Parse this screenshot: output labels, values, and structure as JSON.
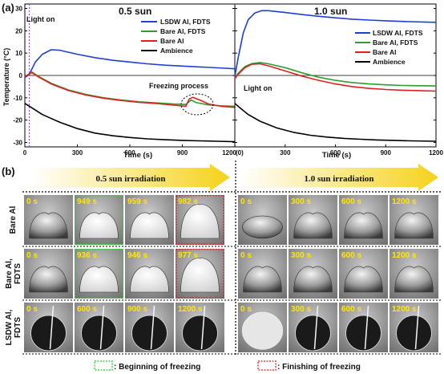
{
  "panel_a": {
    "label": "(a)",
    "ylabel": "Temperature (°C)",
    "xlabel": "Time (s)",
    "annotation_light": "Light on",
    "annotation_freezing": "Freezing process",
    "y_ticks": [
      "30",
      "20",
      "10",
      "0",
      "-10",
      "-20",
      "-30"
    ],
    "x_ticks_left": [
      "0",
      "300",
      "600",
      "900",
      "1200"
    ],
    "x_ticks_right": [
      "(0)",
      "300",
      "600",
      "900",
      "1200"
    ]
  },
  "chart_data": [
    {
      "type": "line",
      "title": "0.5 sun",
      "xlabel": "Time (s)",
      "ylabel": "Temperature (°C)",
      "xlim": [
        0,
        1200
      ],
      "ylim": [
        -32,
        32
      ],
      "legend": "top-right",
      "series": [
        {
          "name": "LSDW Al, FDTS",
          "color": "#1f3fd6",
          "x": [
            0,
            25,
            60,
            100,
            150,
            200,
            300,
            400,
            500,
            600,
            700,
            800,
            900,
            1000,
            1100,
            1200
          ],
          "y": [
            -1,
            0.5,
            6,
            9.5,
            11.5,
            11.3,
            9.5,
            8,
            6.8,
            6,
            5.2,
            4.6,
            4.2,
            3.8,
            3.4,
            3
          ]
        },
        {
          "name": "Bare Al, FDTS",
          "color": "#2f9e2f",
          "x": [
            0,
            40,
            80,
            150,
            250,
            350,
            450,
            550,
            650,
            750,
            850,
            920,
            950,
            980,
            1050,
            1120,
            1200
          ],
          "y": [
            -0.5,
            1.5,
            -0.5,
            -3.5,
            -6.5,
            -8.5,
            -10,
            -11,
            -11.8,
            -12.3,
            -12.8,
            -13,
            -11,
            -12.2,
            -13.2,
            -13.6,
            -13.8
          ]
        },
        {
          "name": "Bare Al",
          "color": "#e02020",
          "x": [
            0,
            40,
            80,
            150,
            250,
            350,
            450,
            550,
            650,
            750,
            850,
            920,
            940,
            960,
            1000,
            1050,
            1120,
            1200
          ],
          "y": [
            -0.5,
            1.3,
            -0.8,
            -3.8,
            -6.8,
            -8.8,
            -10.2,
            -11.2,
            -12,
            -12.6,
            -13.3,
            -13.8,
            -10.5,
            -9.8,
            -11,
            -12.8,
            -13.8,
            -14.3
          ]
        },
        {
          "name": "Ambience",
          "color": "#000000",
          "x": [
            0,
            50,
            100,
            200,
            300,
            400,
            500,
            600,
            700,
            800,
            900,
            1000,
            1100,
            1200
          ],
          "y": [
            -12.5,
            -15,
            -17.5,
            -21,
            -23.8,
            -25.8,
            -27,
            -27.8,
            -28.4,
            -28.8,
            -29.1,
            -29.3,
            -29.5,
            -29.7
          ]
        }
      ]
    },
    {
      "type": "line",
      "title": "1.0 sun",
      "xlabel": "Time (s)",
      "ylabel": "Temperature (°C)",
      "xlim": [
        0,
        1200
      ],
      "ylim": [
        -32,
        32
      ],
      "legend": "top-right",
      "series": [
        {
          "name": "LSDW Al, FDTS",
          "color": "#1f3fd6",
          "x": [
            0,
            20,
            50,
            80,
            120,
            160,
            200,
            300,
            400,
            500,
            600,
            700,
            800,
            900,
            1000,
            1100,
            1200
          ],
          "y": [
            -0.5,
            8,
            19,
            25,
            28,
            29,
            29,
            28.2,
            27.3,
            26.5,
            25.8,
            25.2,
            24.8,
            24.5,
            24.2,
            24,
            23.8
          ]
        },
        {
          "name": "Bare Al, FDTS",
          "color": "#2f9e2f",
          "x": [
            0,
            20,
            60,
            100,
            150,
            200,
            300,
            400,
            500,
            600,
            700,
            800,
            900,
            1000,
            1100,
            1200
          ],
          "y": [
            -1,
            1,
            4,
            5.3,
            5.8,
            5.2,
            3.5,
            1.2,
            -0.8,
            -2.2,
            -3.2,
            -3.8,
            -4.2,
            -4.5,
            -4.6,
            -4.7
          ]
        },
        {
          "name": "Bare Al",
          "color": "#e02020",
          "x": [
            0,
            20,
            60,
            100,
            150,
            200,
            300,
            400,
            500,
            600,
            700,
            800,
            900,
            1000,
            1100,
            1200
          ],
          "y": [
            -1.5,
            0.5,
            3.5,
            5,
            5.2,
            4.3,
            2,
            -0.3,
            -2.2,
            -3.8,
            -5,
            -5.8,
            -6.3,
            -6.6,
            -6.8,
            -7
          ]
        },
        {
          "name": "Ambience",
          "color": "#000000",
          "x": [
            0,
            30,
            80,
            150,
            250,
            350,
            450,
            550,
            650,
            750,
            850,
            950,
            1050,
            1200
          ],
          "y": [
            -12.5,
            -14.5,
            -17.5,
            -20.5,
            -23.5,
            -25.5,
            -26.8,
            -27.6,
            -28.2,
            -28.6,
            -28.9,
            -29.1,
            -29.3,
            -29.5
          ]
        }
      ]
    }
  ],
  "panel_b": {
    "label": "(b)",
    "banner_left": "0.5 sun irradiation",
    "banner_right": "1.0 sun irradiation",
    "rows": [
      {
        "label_line1": "Bare Al",
        "label_line2": "",
        "left": [
          "0 s",
          "949 s",
          "959 s",
          "982 s"
        ],
        "right": [
          "0 s",
          "300 s",
          "600 s",
          "1200 s"
        ]
      },
      {
        "label_line1": "Bare Al,",
        "label_line2": "FDTS",
        "left": [
          "0 s",
          "936 s",
          "946 s",
          "977 s"
        ],
        "right": [
          "0 s",
          "300 s",
          "600 s",
          "1200 s"
        ]
      },
      {
        "label_line1": "LSDW Al,",
        "label_line2": "FDTS",
        "left": [
          "0 s",
          "600 s",
          "900 s",
          "1200 s"
        ],
        "right": [
          "0 s",
          "300 s",
          "600 s",
          "1200 s"
        ]
      }
    ],
    "legend_begin": ": Beginning of freezing",
    "legend_finish": ": Finishing of freezing"
  }
}
